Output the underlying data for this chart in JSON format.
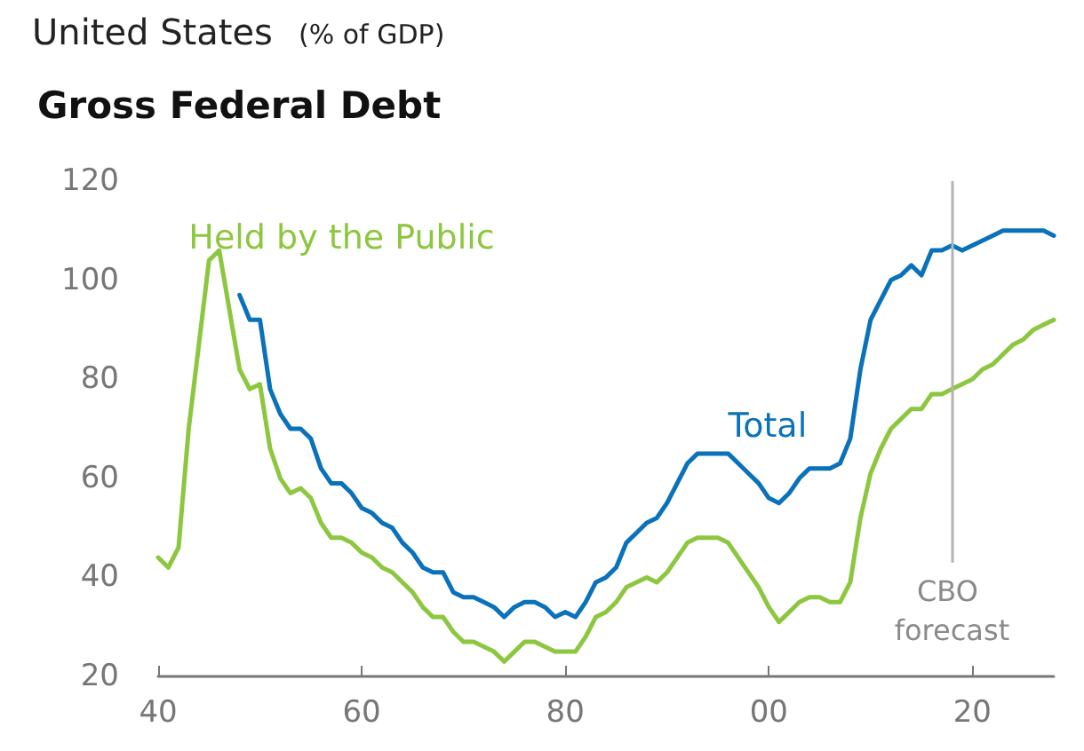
{
  "chart_data": {
    "type": "line",
    "title": "Gross Federal Debt",
    "annotations": [
      "United States",
      "(% of GDP)"
    ],
    "x": [
      1940,
      1941,
      1942,
      1943,
      1944,
      1945,
      1946,
      1947,
      1948,
      1949,
      1950,
      1951,
      1952,
      1953,
      1954,
      1955,
      1956,
      1957,
      1958,
      1959,
      1960,
      1961,
      1962,
      1963,
      1964,
      1965,
      1966,
      1967,
      1968,
      1969,
      1970,
      1971,
      1972,
      1973,
      1974,
      1975,
      1976,
      1977,
      1978,
      1979,
      1980,
      1981,
      1982,
      1983,
      1984,
      1985,
      1986,
      1987,
      1988,
      1989,
      1990,
      1991,
      1992,
      1993,
      1994,
      1995,
      1996,
      1997,
      1998,
      1999,
      2000,
      2001,
      2002,
      2003,
      2004,
      2005,
      2006,
      2007,
      2008,
      2009,
      2010,
      2011,
      2012,
      2013,
      2014,
      2015,
      2016,
      2017,
      2018,
      2019,
      2020,
      2021,
      2022,
      2023,
      2024,
      2025,
      2026,
      2027,
      2028
    ],
    "series": [
      {
        "name": "Held by the Public",
        "color": "#8dc63f",
        "values": [
          44,
          42,
          46,
          70,
          87,
          104,
          106,
          94,
          82,
          78,
          79,
          66,
          60,
          57,
          58,
          56,
          51,
          48,
          48,
          47,
          45,
          44,
          42,
          41,
          39,
          37,
          34,
          32,
          32,
          29,
          27,
          27,
          26,
          25,
          23,
          25,
          27,
          27,
          26,
          25,
          25,
          25,
          28,
          32,
          33,
          35,
          38,
          39,
          40,
          39,
          41,
          44,
          47,
          48,
          48,
          48,
          47,
          44,
          41,
          38,
          34,
          31,
          33,
          35,
          36,
          36,
          35,
          35,
          39,
          52,
          61,
          66,
          70,
          72,
          74,
          74,
          77,
          77,
          78,
          79,
          80,
          82,
          83,
          85,
          87,
          88,
          90,
          91,
          92
        ]
      },
      {
        "name": "Total",
        "color": "#0a72ba",
        "values": [
          null,
          null,
          null,
          null,
          null,
          null,
          null,
          null,
          97,
          92,
          92,
          78,
          73,
          70,
          70,
          68,
          62,
          59,
          59,
          57,
          54,
          53,
          51,
          50,
          47,
          45,
          42,
          41,
          41,
          37,
          36,
          36,
          35,
          34,
          32,
          34,
          35,
          35,
          34,
          32,
          33,
          32,
          35,
          39,
          40,
          42,
          47,
          49,
          51,
          52,
          55,
          59,
          63,
          65,
          65,
          65,
          65,
          63,
          61,
          59,
          56,
          55,
          57,
          60,
          62,
          62,
          62,
          63,
          68,
          82,
          92,
          96,
          100,
          101,
          103,
          101,
          106,
          106,
          107,
          106,
          107,
          108,
          109,
          110,
          110,
          110,
          110,
          110,
          109
        ]
      }
    ],
    "xlim": [
      1940,
      2028
    ],
    "xticks": [
      {
        "value": 1940,
        "label": "40"
      },
      {
        "value": 1960,
        "label": "60"
      },
      {
        "value": 1980,
        "label": "80"
      },
      {
        "value": 2000,
        "label": "00"
      },
      {
        "value": 2020,
        "label": "20"
      }
    ],
    "ylim": [
      20,
      120
    ],
    "yticks": [
      20,
      40,
      60,
      80,
      100,
      120
    ],
    "ref_lines": [
      {
        "axis": "x",
        "value": 2018,
        "label": "CBO forecast",
        "color": "#b3b3b3"
      }
    ],
    "grid": false,
    "legend": false,
    "marker": "none",
    "line_style": "solid"
  }
}
